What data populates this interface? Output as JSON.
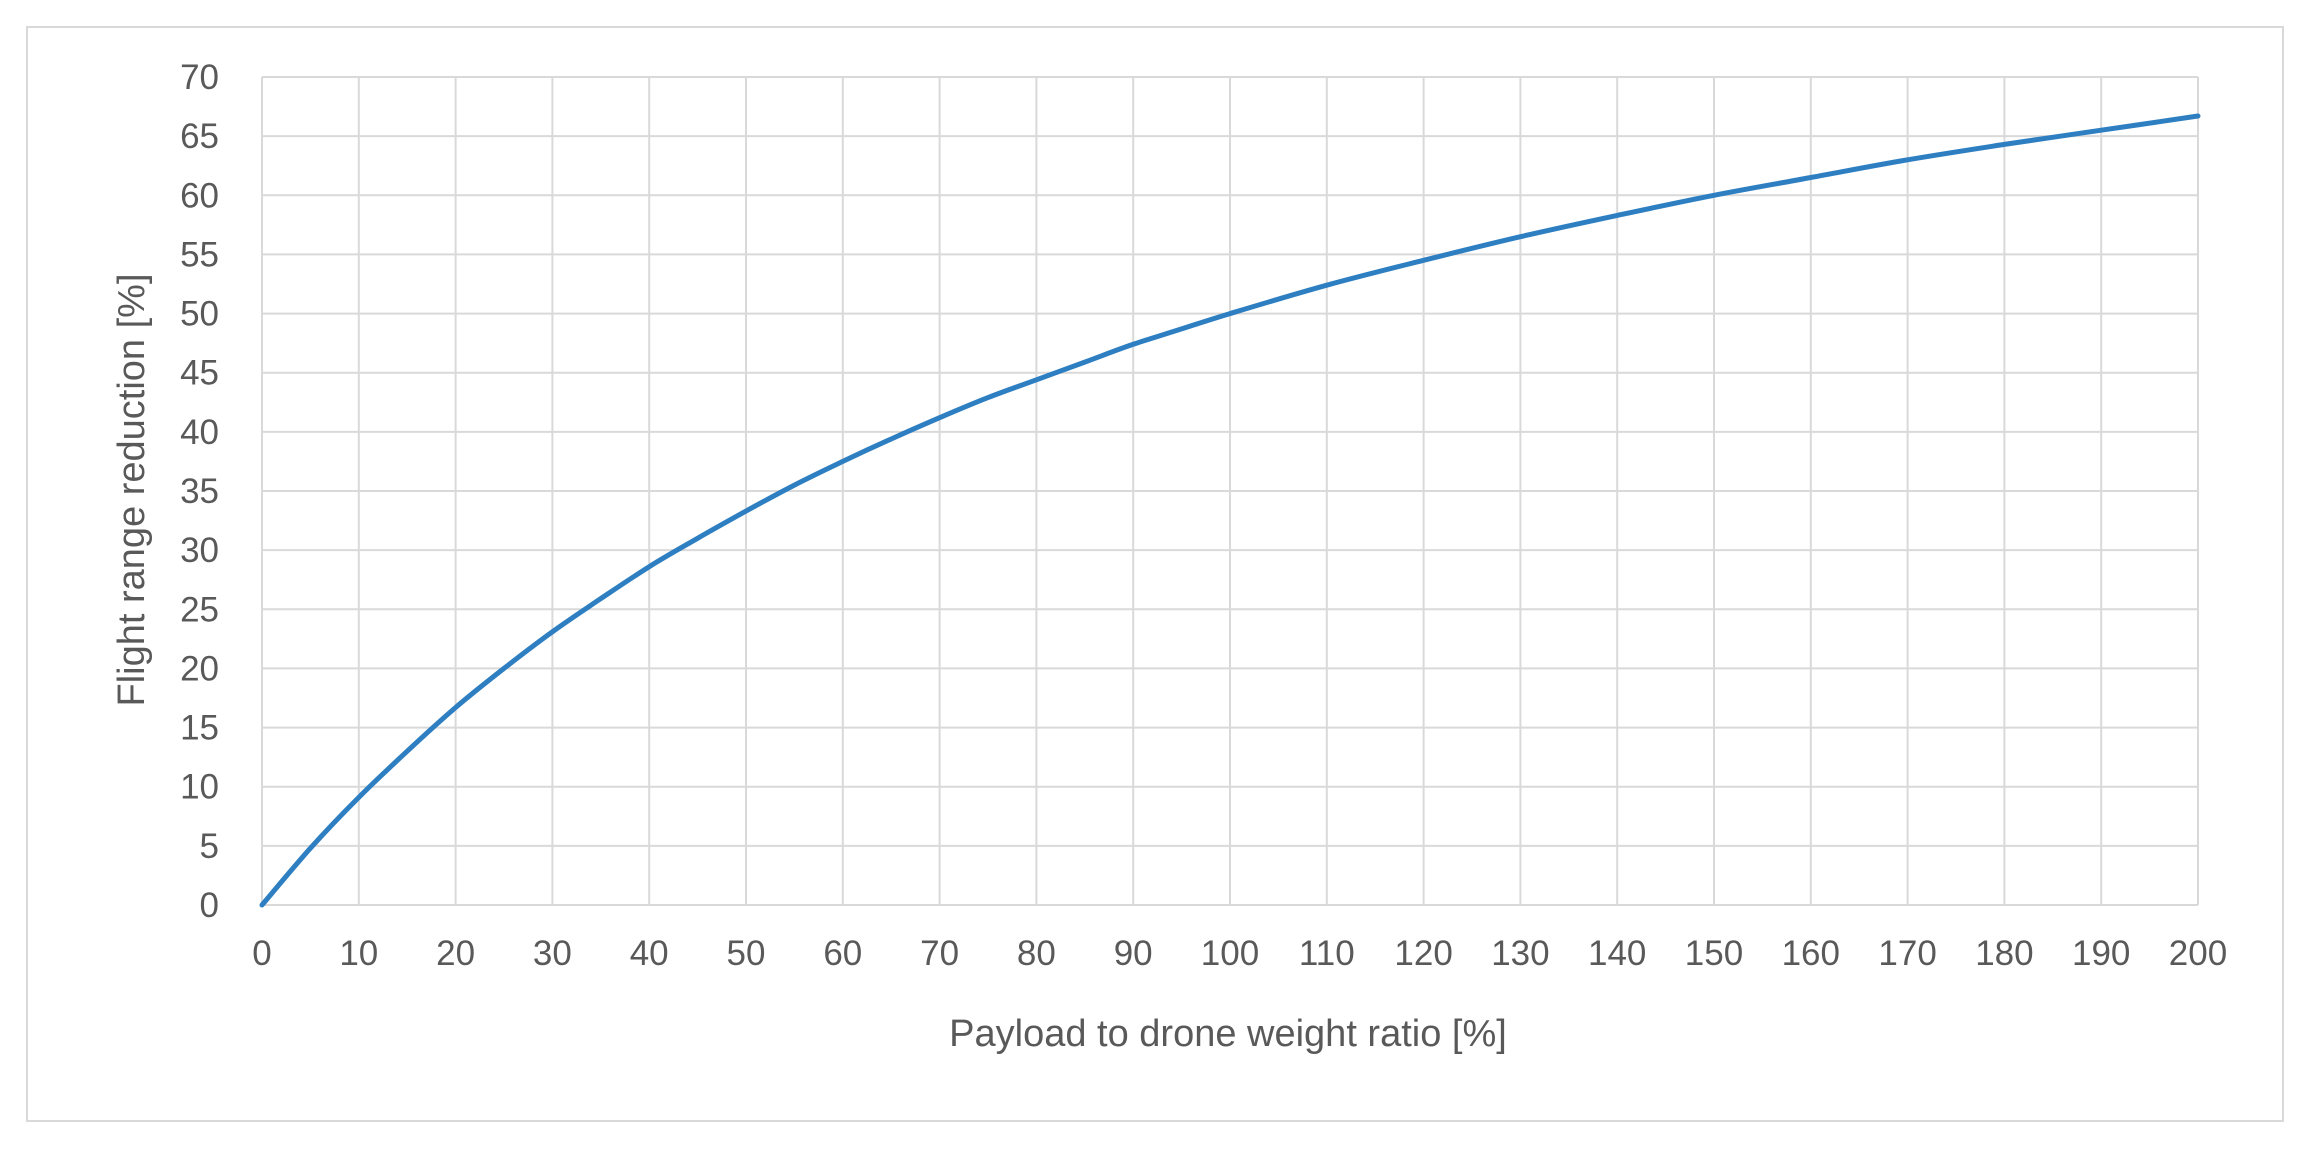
{
  "chart_data": {
    "type": "line",
    "title": "",
    "xlabel": "Payload to drone weight ratio [%]",
    "ylabel": "Flight range reduction [%]",
    "xlim": [
      0,
      200
    ],
    "ylim": [
      0,
      70
    ],
    "x_ticks": [
      "0",
      "10",
      "20",
      "30",
      "40",
      "50",
      "60",
      "70",
      "80",
      "90",
      "100",
      "110",
      "120",
      "130",
      "140",
      "150",
      "160",
      "170",
      "180",
      "190",
      "200"
    ],
    "y_ticks": [
      "0",
      "5",
      "10",
      "15",
      "20",
      "25",
      "30",
      "35",
      "40",
      "45",
      "50",
      "55",
      "60",
      "65",
      "70"
    ],
    "grid": true,
    "legend": "none",
    "series": [
      {
        "color": "#2e7fc2",
        "x": [
          0,
          5,
          10,
          15,
          20,
          25,
          30,
          35,
          40,
          45,
          50,
          55,
          60,
          65,
          70,
          75,
          80,
          85,
          90,
          95,
          100,
          110,
          120,
          130,
          140,
          150,
          160,
          170,
          180,
          190,
          200
        ],
        "y": [
          0,
          4.8,
          9.1,
          13.0,
          16.7,
          20.0,
          23.1,
          25.9,
          28.6,
          31.0,
          33.3,
          35.5,
          37.5,
          39.4,
          41.2,
          42.9,
          44.4,
          45.9,
          47.4,
          48.7,
          50.0,
          52.4,
          54.5,
          56.5,
          58.3,
          60.0,
          61.5,
          63.0,
          64.3,
          65.5,
          66.7
        ]
      }
    ]
  }
}
